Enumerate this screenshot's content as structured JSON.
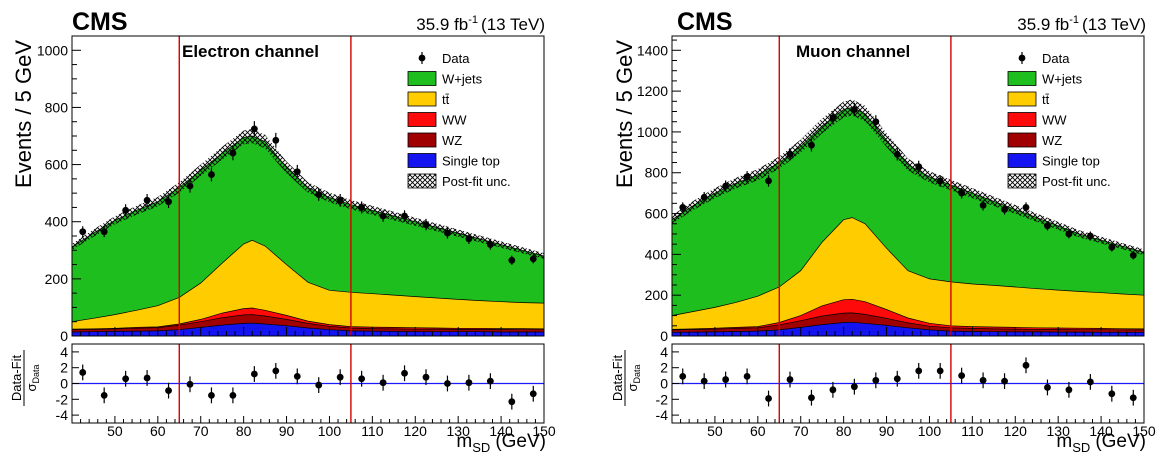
{
  "chart_data": [
    {
      "type": "stacked-area",
      "cms_label": "CMS",
      "lumi_value": "35.9 fb",
      "lumi_exp": "-1",
      "lumi_energy": "(13 TeV)",
      "channel": "Electron channel",
      "ylabel": "Events / 5 GeV",
      "xlabel_main": "m",
      "xlabel_sub": "SD",
      "xlabel_unit": "(GeV)",
      "ratio_ylabel_num": "Data-Fit",
      "ratio_ylabel_den_main": "σ",
      "ratio_ylabel_den_sub": "Data",
      "xlim": [
        40,
        150
      ],
      "ylim": [
        0,
        1050
      ],
      "yticks": [
        0,
        200,
        400,
        600,
        800,
        1000
      ],
      "xticks": [
        50,
        60,
        70,
        80,
        90,
        100,
        110,
        120,
        130,
        140,
        150
      ],
      "ratio_ylim": [
        -5,
        5
      ],
      "ratio_yticks": [
        -4,
        -2,
        0,
        2,
        4
      ],
      "window_lines": [
        65,
        105
      ],
      "mass_points": [
        40,
        45,
        50,
        55,
        60,
        65,
        70,
        75,
        80,
        82,
        85,
        90,
        95,
        100,
        105,
        110,
        115,
        120,
        125,
        130,
        135,
        140,
        145,
        150
      ],
      "stack": [
        {
          "name": "Single top",
          "color": "#1414f0",
          "top": [
            14,
            15,
            16,
            17,
            18,
            22,
            30,
            38,
            44,
            45,
            42,
            36,
            28,
            22,
            18,
            17,
            16,
            15,
            15,
            15,
            15,
            14,
            14,
            14
          ]
        },
        {
          "name": "WZ",
          "color": "#a00000",
          "top": [
            22,
            23,
            25,
            27,
            29,
            38,
            50,
            64,
            74,
            75,
            70,
            58,
            44,
            34,
            28,
            26,
            25,
            24,
            24,
            23,
            23,
            23,
            22,
            22
          ]
        },
        {
          "name": "WW",
          "color": "#ff0a0a",
          "top": [
            24,
            25,
            27,
            30,
            32,
            42,
            58,
            80,
            96,
            98,
            90,
            72,
            52,
            40,
            33,
            31,
            30,
            29,
            28,
            27,
            27,
            26,
            26,
            25
          ]
        },
        {
          "name": "tt̄",
          "color": "#ffcc00",
          "top": [
            50,
            62,
            75,
            90,
            106,
            135,
            185,
            255,
            322,
            335,
            315,
            250,
            188,
            160,
            153,
            148,
            143,
            138,
            133,
            128,
            124,
            120,
            117,
            115
          ]
        },
        {
          "name": "W+jets",
          "color": "#1ebe1e",
          "top": [
            312,
            360,
            405,
            440,
            470,
            520,
            580,
            640,
            695,
            700,
            680,
            590,
            520,
            485,
            460,
            440,
            420,
            400,
            380,
            360,
            340,
            320,
            300,
            280
          ]
        }
      ],
      "legend": [
        {
          "label": "Data",
          "kind": "marker"
        },
        {
          "label": "W+jets",
          "color": "#1ebe1e"
        },
        {
          "label": "tt̄",
          "color": "#ffcc00"
        },
        {
          "label": "WW",
          "color": "#ff0a0a"
        },
        {
          "label": "WZ",
          "color": "#a00000"
        },
        {
          "label": "Single top",
          "color": "#1414f0"
        },
        {
          "label": "Post-fit unc.",
          "kind": "hatch"
        }
      ],
      "data": {
        "x": [
          42.5,
          47.5,
          52.5,
          57.5,
          62.5,
          67.5,
          72.5,
          77.5,
          82.5,
          87.5,
          92.5,
          97.5,
          102.5,
          107.5,
          112.5,
          117.5,
          122.5,
          127.5,
          132.5,
          137.5,
          142.5,
          147.5
        ],
        "y": [
          365,
          365,
          440,
          475,
          470,
          525,
          565,
          640,
          725,
          685,
          575,
          495,
          475,
          450,
          420,
          420,
          390,
          360,
          340,
          320,
          265,
          270
        ],
        "err": [
          19,
          19,
          21,
          22,
          22,
          23,
          24,
          25,
          27,
          26,
          24,
          22,
          22,
          21,
          20,
          20,
          20,
          19,
          18,
          18,
          16,
          16
        ]
      },
      "ratio": {
        "x": [
          42.5,
          47.5,
          52.5,
          57.5,
          62.5,
          67.5,
          72.5,
          77.5,
          82.5,
          87.5,
          92.5,
          97.5,
          102.5,
          107.5,
          112.5,
          117.5,
          122.5,
          127.5,
          132.5,
          137.5,
          142.5,
          147.5
        ],
        "y": [
          1.4,
          -1.5,
          0.6,
          0.7,
          -0.9,
          -0.1,
          -1.5,
          -1.5,
          1.2,
          1.6,
          0.9,
          -0.2,
          0.8,
          0.6,
          0.1,
          1.3,
          0.8,
          0.0,
          0.1,
          0.3,
          -2.3,
          -1.3
        ],
        "err": [
          1,
          1,
          1,
          1,
          1,
          1,
          1,
          1,
          1,
          1,
          1,
          1,
          1,
          1,
          1,
          1,
          1,
          1,
          1,
          1,
          1,
          1
        ]
      }
    },
    {
      "type": "stacked-area",
      "cms_label": "CMS",
      "lumi_value": "35.9 fb",
      "lumi_exp": "-1",
      "lumi_energy": "(13 TeV)",
      "channel": "Muon channel",
      "ylabel": "Events / 5 GeV",
      "xlabel_main": "m",
      "xlabel_sub": "SD",
      "xlabel_unit": "(GeV)",
      "ratio_ylabel_num": "Data-Fit",
      "ratio_ylabel_den_main": "σ",
      "ratio_ylabel_den_sub": "Data",
      "xlim": [
        40,
        150
      ],
      "ylim": [
        0,
        1470
      ],
      "yticks": [
        0,
        200,
        400,
        600,
        800,
        1000,
        1200,
        1400
      ],
      "xticks": [
        50,
        60,
        70,
        80,
        90,
        100,
        110,
        120,
        130,
        140,
        150
      ],
      "ratio_ylim": [
        -5,
        5
      ],
      "ratio_yticks": [
        -4,
        -2,
        0,
        2,
        4
      ],
      "window_lines": [
        65,
        105
      ],
      "mass_points": [
        40,
        45,
        50,
        55,
        60,
        65,
        70,
        75,
        80,
        82,
        85,
        90,
        95,
        100,
        105,
        110,
        115,
        120,
        125,
        130,
        135,
        140,
        145,
        150
      ],
      "stack": [
        {
          "name": "Single top",
          "color": "#1414f0",
          "top": [
            18,
            19,
            20,
            22,
            24,
            30,
            42,
            56,
            66,
            67,
            62,
            52,
            40,
            30,
            24,
            22,
            21,
            20,
            20,
            19,
            19,
            18,
            18,
            18
          ]
        },
        {
          "name": "WZ",
          "color": "#a00000",
          "top": [
            30,
            32,
            34,
            37,
            40,
            55,
            75,
            98,
            112,
            113,
            106,
            86,
            64,
            48,
            40,
            37,
            35,
            34,
            33,
            32,
            31,
            31,
            30,
            30
          ]
        },
        {
          "name": "WW",
          "color": "#ff0a0a",
          "top": [
            33,
            35,
            38,
            42,
            46,
            66,
            100,
            148,
            178,
            180,
            168,
            130,
            88,
            62,
            50,
            46,
            44,
            42,
            40,
            39,
            38,
            37,
            36,
            35
          ]
        },
        {
          "name": "tt̄",
          "color": "#ffcc00",
          "top": [
            100,
            120,
            140,
            165,
            195,
            240,
            320,
            460,
            570,
            580,
            550,
            430,
            320,
            280,
            265,
            255,
            248,
            240,
            232,
            225,
            218,
            212,
            206,
            200
          ]
        },
        {
          "name": "W+jets",
          "color": "#1ebe1e",
          "top": [
            570,
            640,
            700,
            750,
            790,
            850,
            930,
            1030,
            1110,
            1120,
            1090,
            960,
            840,
            780,
            740,
            700,
            660,
            620,
            580,
            540,
            500,
            470,
            440,
            410
          ]
        }
      ],
      "legend": [
        {
          "label": "Data",
          "kind": "marker"
        },
        {
          "label": "W+jets",
          "color": "#1ebe1e"
        },
        {
          "label": "tt̄",
          "color": "#ffcc00"
        },
        {
          "label": "WW",
          "color": "#ff0a0a"
        },
        {
          "label": "WZ",
          "color": "#a00000"
        },
        {
          "label": "Single top",
          "color": "#1414f0"
        },
        {
          "label": "Post-fit unc.",
          "kind": "hatch"
        }
      ],
      "data": {
        "x": [
          42.5,
          47.5,
          52.5,
          57.5,
          62.5,
          67.5,
          72.5,
          77.5,
          82.5,
          87.5,
          92.5,
          97.5,
          102.5,
          107.5,
          112.5,
          117.5,
          122.5,
          127.5,
          132.5,
          137.5,
          142.5,
          147.5
        ],
        "y": [
          630,
          680,
          735,
          780,
          760,
          890,
          935,
          1070,
          1110,
          1050,
          890,
          830,
          760,
          700,
          640,
          620,
          630,
          540,
          500,
          490,
          435,
          395
        ],
        "err": [
          25,
          26,
          27,
          28,
          28,
          30,
          31,
          33,
          33,
          32,
          30,
          29,
          28,
          26,
          25,
          25,
          25,
          23,
          22,
          22,
          21,
          20
        ]
      },
      "ratio": {
        "x": [
          42.5,
          47.5,
          52.5,
          57.5,
          62.5,
          67.5,
          72.5,
          77.5,
          82.5,
          87.5,
          92.5,
          97.5,
          102.5,
          107.5,
          112.5,
          117.5,
          122.5,
          127.5,
          132.5,
          137.5,
          142.5,
          147.5
        ],
        "y": [
          0.9,
          0.3,
          0.5,
          0.9,
          -1.9,
          0.5,
          -1.8,
          -0.8,
          -0.4,
          0.4,
          0.6,
          1.6,
          1.6,
          1.0,
          0.4,
          0.3,
          2.3,
          -0.5,
          -0.8,
          0.2,
          -1.3,
          -1.8
        ],
        "err": [
          1,
          1,
          1,
          1,
          1,
          1,
          1,
          1,
          1,
          1,
          1,
          1,
          1,
          1,
          1,
          1,
          1,
          1,
          1,
          1,
          1,
          1
        ]
      }
    }
  ]
}
